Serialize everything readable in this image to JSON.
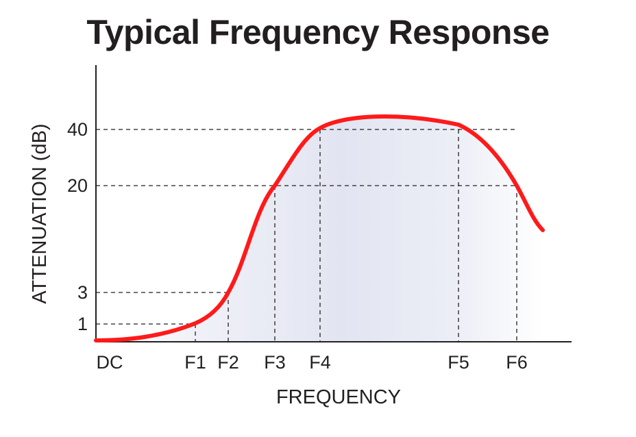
{
  "chart_data": {
    "type": "line",
    "title": "Typical Frequency Response",
    "xlabel": "FREQUENCY",
    "ylabel": "ATTENUATION (dB)",
    "x_categories": [
      "DC",
      "F1",
      "F2",
      "F3",
      "F4",
      "F5",
      "F6"
    ],
    "y_ticks": [
      "1",
      "3",
      "20",
      "40"
    ],
    "reference_points": [
      {
        "x": "F1",
        "y": "1"
      },
      {
        "x": "F2",
        "y": "3"
      },
      {
        "x": "F3",
        "y": "20"
      },
      {
        "x": "F4",
        "y": "40"
      },
      {
        "x": "F5",
        "y": "40"
      },
      {
        "x": "F6",
        "y": "20"
      }
    ],
    "curve_color": "#ff1a1a",
    "fill_color": "#e3e6f2",
    "axis_color": "#231f20",
    "grid": "dashed reference lines"
  }
}
